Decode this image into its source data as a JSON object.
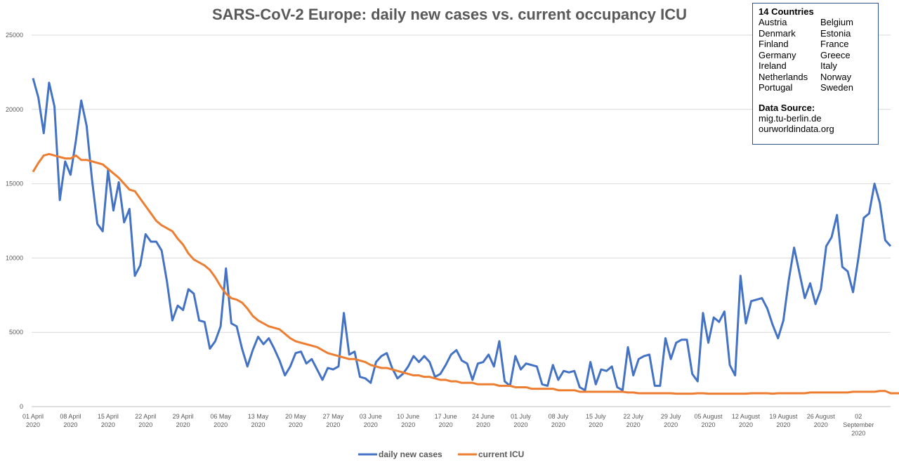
{
  "chart_data": {
    "type": "line",
    "title": "SARS-CoV-2 Europe: daily new cases vs. current occupancy ICU",
    "ylim": [
      0,
      25000
    ],
    "y_ticks": [
      "0",
      "5000",
      "10000",
      "15000",
      "20000",
      "25000"
    ],
    "x_tick_labels": [
      [
        "01 April",
        "2020"
      ],
      [
        "08 April",
        "2020"
      ],
      [
        "15 April",
        "2020"
      ],
      [
        "22 April",
        "2020"
      ],
      [
        "29 April",
        "2020"
      ],
      [
        "06 May",
        "2020"
      ],
      [
        "13 May",
        "2020"
      ],
      [
        "20 May",
        "2020"
      ],
      [
        "27 May",
        "2020"
      ],
      [
        "03 June",
        "2020"
      ],
      [
        "10 June",
        "2020"
      ],
      [
        "17 June",
        "2020"
      ],
      [
        "24 June",
        "2020"
      ],
      [
        "01 July",
        "2020"
      ],
      [
        "08 July",
        "2020"
      ],
      [
        "15 July",
        "2020"
      ],
      [
        "22 July",
        "2020"
      ],
      [
        "29 July",
        "2020"
      ],
      [
        "05 August",
        "2020"
      ],
      [
        "12 August",
        "2020"
      ],
      [
        "19 August",
        "2020"
      ],
      [
        "26 August",
        "2020"
      ],
      [
        "02",
        "September",
        "2020"
      ]
    ],
    "x_start": "2020-04-01",
    "legend": "bottom",
    "series": [
      {
        "name": "daily new cases",
        "color": "#4472c4",
        "values": [
          22100,
          20800,
          18400,
          21800,
          20200,
          13900,
          16500,
          15600,
          17900,
          20600,
          18900,
          15300,
          12300,
          11800,
          15900,
          13200,
          15100,
          12400,
          13300,
          8800,
          9500,
          11600,
          11100,
          11100,
          10500,
          8400,
          5800,
          6800,
          6500,
          7900,
          7600,
          5800,
          5700,
          3900,
          4400,
          5400,
          9300,
          5600,
          5400,
          3900,
          2700,
          3800,
          4700,
          4200,
          4600,
          3900,
          3100,
          2100,
          2700,
          3600,
          3700,
          2900,
          3200,
          2500,
          1800,
          2600,
          2500,
          2700,
          6300,
          3500,
          3700,
          2000,
          1900,
          1600,
          3000,
          3400,
          3600,
          2600,
          1900,
          2200,
          2700,
          3400,
          3000,
          3400,
          3000,
          2000,
          2200,
          2800,
          3500,
          3800,
          3100,
          2900,
          1800,
          2900,
          3000,
          3500,
          2700,
          4400,
          1700,
          1400,
          3400,
          2500,
          2900,
          2800,
          2700,
          1500,
          1400,
          2800,
          1800,
          2400,
          2300,
          2400,
          1300,
          1100,
          3000,
          1500,
          2500,
          2400,
          2700,
          1300,
          1100,
          4000,
          2100,
          3200,
          3400,
          3500,
          1400,
          1400,
          4600,
          3200,
          4300,
          4500,
          4500,
          2200,
          1700,
          6300,
          4300,
          6000,
          5700,
          6400,
          2800,
          2100,
          8800,
          5600,
          7100,
          7200,
          7300,
          6600,
          5500,
          4600,
          5800,
          8500,
          10700,
          9000,
          7300,
          8300,
          6900,
          7900,
          10800,
          11400,
          12900,
          9400,
          9100,
          7700,
          10000,
          12700,
          13000,
          15000,
          13700,
          11200,
          10800
        ]
      },
      {
        "name": "current ICU",
        "color": "#ed7d31",
        "values": [
          15800,
          16400,
          16900,
          17000,
          16900,
          16800,
          16700,
          16700,
          16900,
          16600,
          16600,
          16500,
          16400,
          16300,
          16000,
          15700,
          15400,
          15000,
          14600,
          14500,
          14000,
          13500,
          13000,
          12500,
          12200,
          12000,
          11800,
          11300,
          10900,
          10300,
          9900,
          9700,
          9500,
          9200,
          8700,
          8100,
          7600,
          7300,
          7200,
          7000,
          6600,
          6100,
          5800,
          5600,
          5400,
          5300,
          5200,
          4900,
          4600,
          4400,
          4300,
          4200,
          4100,
          4000,
          3800,
          3600,
          3500,
          3400,
          3300,
          3200,
          3200,
          3100,
          3000,
          2800,
          2700,
          2600,
          2600,
          2500,
          2400,
          2300,
          2200,
          2100,
          2100,
          2000,
          2000,
          1900,
          1800,
          1800,
          1700,
          1700,
          1600,
          1600,
          1600,
          1500,
          1500,
          1500,
          1500,
          1400,
          1400,
          1400,
          1300,
          1300,
          1300,
          1200,
          1200,
          1200,
          1200,
          1200,
          1100,
          1100,
          1100,
          1100,
          1000,
          1000,
          1000,
          1000,
          1000,
          1000,
          1000,
          1000,
          1000,
          950,
          950,
          900,
          900,
          900,
          900,
          900,
          900,
          900,
          870,
          870,
          870,
          870,
          900,
          900,
          870,
          870,
          870,
          870,
          870,
          870,
          870,
          870,
          900,
          900,
          900,
          900,
          870,
          900,
          900,
          900,
          900,
          900,
          900,
          950,
          950,
          950,
          950,
          950,
          950,
          950,
          950,
          1000,
          1000,
          1000,
          1000,
          1000,
          1050,
          1050,
          900,
          900,
          900,
          950,
          950,
          1000
        ]
      }
    ]
  },
  "info_box": {
    "heading": "14 Countries",
    "countries": [
      "Austria",
      "Belgium",
      "Denmark",
      "Estonia",
      "Finland",
      "France",
      "Germany",
      "Greece",
      "Ireland",
      "Italy",
      "Netherlands",
      "Norway",
      "Portugal",
      "Sweden"
    ],
    "source_heading": "Data Source:",
    "sources": [
      "mig.tu-berlin.de",
      "ourworldindata.org"
    ]
  }
}
